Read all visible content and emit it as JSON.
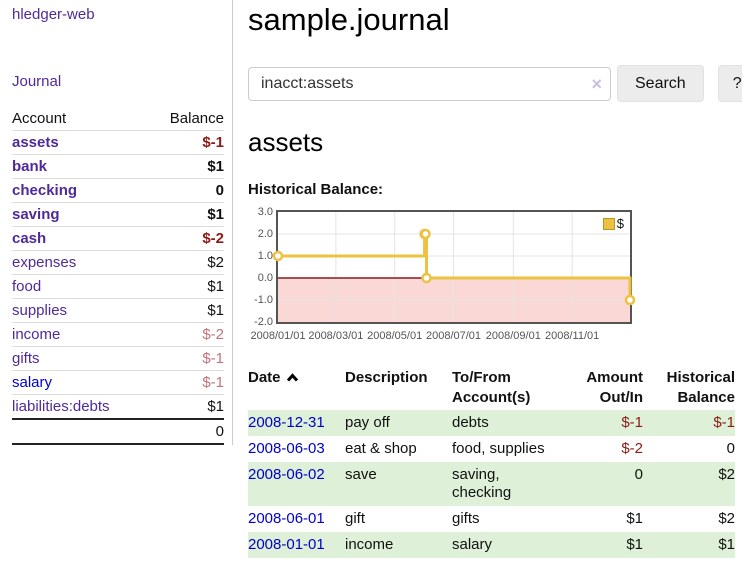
{
  "app": {
    "brand": "hledger-web"
  },
  "colors": {
    "link_visited_purple": "#4f2a99",
    "link_unvisited_blue": "#0000cc",
    "negative_red": "#8e1a15",
    "negative_faded_red": "#c0747c",
    "row_shade_green": "#dff0d8",
    "series_gold": "#edc240",
    "chart_negative_pink": "#f9d8d6",
    "chart_zero_line_red": "#8b1a1a",
    "chart_border_gray": "#545454",
    "clear_icon_lavender": "#c9bfe3"
  },
  "sidebar": {
    "journal_link": "Journal",
    "accounts_table": {
      "headers": {
        "account": "Account",
        "balance": "Balance"
      },
      "rows": [
        {
          "account": "assets",
          "depth": 1,
          "bold": true,
          "balance": "$-1",
          "balance_style": "negative",
          "link_style": "visited"
        },
        {
          "account": "bank",
          "depth": 2,
          "bold": true,
          "balance": "$1",
          "balance_style": "normal",
          "link_style": "visited"
        },
        {
          "account": "checking",
          "depth": 3,
          "bold": true,
          "balance": "0",
          "balance_style": "normal",
          "link_style": "visited"
        },
        {
          "account": "saving",
          "depth": 3,
          "bold": true,
          "balance": "$1",
          "balance_style": "normal",
          "link_style": "visited"
        },
        {
          "account": "cash",
          "depth": 2,
          "bold": true,
          "balance": "$-2",
          "balance_style": "negative",
          "link_style": "visited"
        },
        {
          "account": "expenses",
          "depth": 1,
          "bold": false,
          "balance": "$2",
          "balance_style": "normal",
          "link_style": "visited"
        },
        {
          "account": "food",
          "depth": 2,
          "bold": false,
          "balance": "$1",
          "balance_style": "normal",
          "link_style": "visited"
        },
        {
          "account": "supplies",
          "depth": 2,
          "bold": false,
          "balance": "$1",
          "balance_style": "normal",
          "link_style": "visited"
        },
        {
          "account": "income",
          "depth": 1,
          "bold": false,
          "balance": "$-2",
          "balance_style": "negative-faded",
          "link_style": "visited"
        },
        {
          "account": "gifts",
          "depth": 2,
          "bold": false,
          "balance": "$-1",
          "balance_style": "negative-faded",
          "link_style": "visited"
        },
        {
          "account": "salary",
          "depth": 2,
          "bold": false,
          "balance": "$-1",
          "balance_style": "negative-faded",
          "link_style": "unvisited"
        },
        {
          "account": "liabilities:debts",
          "depth": 1,
          "bold": false,
          "balance": "$1",
          "balance_style": "normal",
          "link_style": "visited"
        }
      ],
      "total": "0"
    }
  },
  "main": {
    "title": "sample.journal",
    "search": {
      "value": "inacct:assets",
      "clear_icon": "×",
      "search_button": "Search",
      "help_button": "?"
    },
    "account_heading": "assets"
  },
  "chart_data": {
    "type": "line",
    "step": true,
    "title": "Historical Balance:",
    "legend": [
      {
        "label": "$",
        "color": "#edc240"
      }
    ],
    "legend_position": "top-right",
    "grid": true,
    "ylim": [
      -2,
      3
    ],
    "y_ticks": [
      "3.0",
      "2.0",
      "1.0",
      "0.0",
      "-1.0",
      "-2.0"
    ],
    "x_tick_labels": [
      "2008/01/01",
      "2008/03/01",
      "2008/05/01",
      "2008/07/01",
      "2008/09/01",
      "2008/11/01"
    ],
    "x_tick_days": [
      0,
      60,
      121,
      182,
      244,
      305
    ],
    "x_range_days": 365,
    "series": [
      {
        "name": "$",
        "points": [
          {
            "date": "2008-01-01",
            "day": 0,
            "value": 1
          },
          {
            "date": "2008-06-01",
            "day": 152,
            "value": 2
          },
          {
            "date": "2008-06-02",
            "day": 153,
            "value": 2
          },
          {
            "date": "2008-06-03",
            "day": 154,
            "value": 0
          },
          {
            "date": "2008-12-31",
            "day": 365,
            "value": -1
          }
        ]
      }
    ]
  },
  "register": {
    "headers": {
      "date": "Date",
      "description": "Description",
      "accounts_line1": "To/From",
      "accounts_line2": "Account(s)",
      "amount_line1": "Amount",
      "amount_line2": "Out/In",
      "balance_line1": "Historical",
      "balance_line2": "Balance"
    },
    "sort": {
      "column": "date",
      "direction": "ascending"
    },
    "rows": [
      {
        "date": "2008-12-31",
        "description": "pay off",
        "accounts": "debts",
        "amount": "$-1",
        "amount_style": "negative",
        "balance": "$-1",
        "balance_style": "negative",
        "shaded": true
      },
      {
        "date": "2008-06-03",
        "description": "eat & shop",
        "accounts": "food, supplies",
        "amount": "$-2",
        "amount_style": "negative",
        "balance": "0",
        "balance_style": "normal",
        "shaded": false
      },
      {
        "date": "2008-06-02",
        "description": "save",
        "accounts": "saving, checking",
        "amount": "0",
        "amount_style": "normal",
        "balance": "$2",
        "balance_style": "normal",
        "shaded": true
      },
      {
        "date": "2008-06-01",
        "description": "gift",
        "accounts": "gifts",
        "amount": "$1",
        "amount_style": "normal",
        "balance": "$2",
        "balance_style": "normal",
        "shaded": false
      },
      {
        "date": "2008-01-01",
        "description": "income",
        "accounts": "salary",
        "amount": "$1",
        "amount_style": "normal",
        "balance": "$1",
        "balance_style": "normal",
        "shaded": true
      }
    ]
  }
}
